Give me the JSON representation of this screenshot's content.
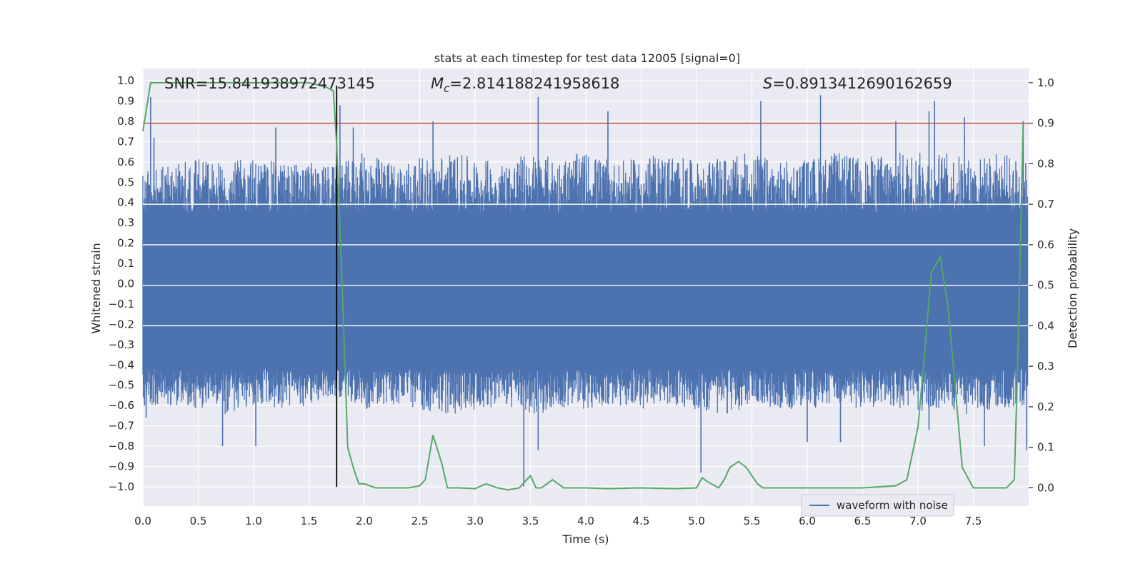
{
  "chart_data": {
    "type": "line",
    "title": "stats at each timestep for test data 12005 [signal=0]",
    "xlabel": "Time (s)",
    "ylabel": "Whitened strain",
    "y2label": "Detection probability",
    "xlim": [
      0.0,
      8.0
    ],
    "ylim": [
      -1.095,
      1.06
    ],
    "y2lim": [
      -0.045,
      1.035
    ],
    "xticks": [
      0.0,
      0.5,
      1.0,
      1.5,
      2.0,
      2.5,
      3.0,
      3.5,
      4.0,
      4.5,
      5.0,
      5.5,
      6.0,
      6.5,
      7.0,
      7.5
    ],
    "xtick_labels": [
      "0.0",
      "0.5",
      "1.0",
      "1.5",
      "2.0",
      "2.5",
      "3.0",
      "3.5",
      "4.0",
      "4.5",
      "5.0",
      "5.5",
      "6.0",
      "6.5",
      "7.0",
      "7.5"
    ],
    "yticks": [
      -1.0,
      -0.9,
      -0.8,
      -0.7,
      -0.6,
      -0.5,
      -0.4,
      -0.3,
      -0.2,
      -0.1,
      0.0,
      0.1,
      0.2,
      0.3,
      0.4,
      0.5,
      0.6,
      0.7,
      0.8,
      0.9,
      1.0
    ],
    "ytick_labels": [
      "−1.0",
      "−0.9",
      "−0.8",
      "−0.7",
      "−0.6",
      "−0.5",
      "−0.4",
      "−0.3",
      "−0.2",
      "−0.1",
      "0.0",
      "0.1",
      "0.2",
      "0.3",
      "0.4",
      "0.5",
      "0.6",
      "0.7",
      "0.8",
      "0.9",
      "1.0"
    ],
    "y2ticks": [
      0.0,
      0.1,
      0.2,
      0.3,
      0.4,
      0.5,
      0.6,
      0.7,
      0.8,
      0.9,
      1.0
    ],
    "y2tick_labels": [
      "0.0",
      "0.1",
      "0.2",
      "0.3",
      "0.4",
      "0.5",
      "0.6",
      "0.7",
      "0.8",
      "0.9",
      "1.0"
    ],
    "grid": true,
    "background": "#eaeaf2",
    "annotations": {
      "snr": "SNR=15.841938972473145",
      "mc_symbol": "M",
      "mc_sub": "c",
      "mc_value": "=2.814188241958618",
      "s_symbol": "S",
      "s_value": "=0.8913412690162659"
    },
    "threshold": {
      "value": 0.9,
      "axis": "right",
      "color": "#c44e52"
    },
    "vline": {
      "x": 1.75,
      "color": "#000000"
    },
    "legend": {
      "position": "lower-right",
      "entries": [
        "waveform with noise"
      ]
    },
    "series": [
      {
        "name": "waveform with noise",
        "axis": "left",
        "color": "#4c72b0",
        "description_envelope": {
          "x": [
            0.0,
            0.25,
            0.5,
            0.75,
            1.0,
            1.25,
            1.5,
            1.75,
            2.0,
            2.25,
            2.5,
            2.75,
            3.0,
            3.25,
            3.5,
            3.75,
            4.0,
            4.25,
            4.5,
            4.75,
            5.0,
            5.25,
            5.5,
            5.75,
            6.0,
            6.25,
            6.5,
            6.75,
            7.0,
            7.25,
            7.5,
            7.75,
            7.99
          ],
          "upper": [
            0.55,
            0.6,
            0.62,
            0.6,
            0.62,
            0.6,
            0.6,
            0.58,
            0.65,
            0.6,
            0.62,
            0.65,
            0.62,
            0.6,
            0.65,
            0.62,
            0.65,
            0.6,
            0.62,
            0.65,
            0.6,
            0.62,
            0.65,
            0.6,
            0.62,
            0.65,
            0.62,
            0.65,
            0.65,
            0.65,
            0.62,
            0.65,
            0.6
          ],
          "lower": [
            -0.6,
            -0.6,
            -0.62,
            -0.65,
            -0.6,
            -0.62,
            -0.6,
            -0.55,
            -0.62,
            -0.6,
            -0.62,
            -0.65,
            -0.62,
            -0.6,
            -0.65,
            -0.62,
            -0.62,
            -0.6,
            -0.62,
            -0.6,
            -0.62,
            -0.65,
            -0.6,
            -0.62,
            -0.62,
            -0.6,
            -0.62,
            -0.6,
            -0.65,
            -0.62,
            -0.65,
            -0.62,
            -0.6
          ],
          "spikes_up": [
            [
              0.07,
              0.92
            ],
            [
              0.1,
              0.72
            ],
            [
              1.2,
              0.77
            ],
            [
              1.78,
              0.88
            ],
            [
              1.9,
              0.77
            ],
            [
              2.62,
              0.8
            ],
            [
              3.57,
              0.92
            ],
            [
              4.2,
              0.85
            ],
            [
              5.58,
              0.9
            ],
            [
              6.12,
              0.93
            ],
            [
              6.8,
              0.8
            ],
            [
              7.1,
              0.85
            ],
            [
              7.15,
              0.9
            ],
            [
              7.42,
              0.82
            ],
            [
              7.95,
              0.8
            ]
          ],
          "spikes_down": [
            [
              0.03,
              -0.66
            ],
            [
              0.72,
              -0.8
            ],
            [
              1.02,
              -0.8
            ],
            [
              3.44,
              -1.0
            ],
            [
              3.57,
              -0.82
            ],
            [
              5.04,
              -0.93
            ],
            [
              6.0,
              -0.78
            ],
            [
              6.3,
              -0.78
            ],
            [
              7.1,
              -0.72
            ],
            [
              7.6,
              -0.8
            ],
            [
              7.98,
              -0.82
            ]
          ]
        }
      },
      {
        "name": "",
        "axis": "right",
        "color": "#55a868",
        "x": [
          0.0,
          0.07,
          0.5,
          1.0,
          1.5,
          1.65,
          1.72,
          1.75,
          1.8,
          1.85,
          1.9,
          1.95,
          2.0,
          2.1,
          2.2,
          2.3,
          2.4,
          2.5,
          2.55,
          2.62,
          2.7,
          2.75,
          2.85,
          3.0,
          3.1,
          3.2,
          3.3,
          3.4,
          3.5,
          3.55,
          3.6,
          3.7,
          3.8,
          3.9,
          4.0,
          4.2,
          4.5,
          4.8,
          5.0,
          5.05,
          5.1,
          5.2,
          5.25,
          5.3,
          5.38,
          5.45,
          5.55,
          5.6,
          5.7,
          6.0,
          6.5,
          6.8,
          6.9,
          7.0,
          7.05,
          7.12,
          7.2,
          7.27,
          7.32,
          7.4,
          7.5,
          7.6,
          7.8,
          7.87,
          7.9,
          7.95
        ],
        "values": [
          0.88,
          1.0,
          1.0,
          1.0,
          1.0,
          0.99,
          0.98,
          0.85,
          0.5,
          0.1,
          0.05,
          0.01,
          0.01,
          0.0,
          0.0,
          0.0,
          0.0,
          0.005,
          0.02,
          0.13,
          0.06,
          0.0,
          0.0,
          -0.002,
          0.01,
          0.0,
          -0.005,
          0.0,
          0.03,
          0.0,
          0.0,
          0.02,
          0.0,
          0.0,
          0.0,
          -0.002,
          0.0,
          -0.002,
          0.0,
          0.025,
          0.015,
          0.0,
          0.02,
          0.05,
          0.065,
          0.05,
          0.01,
          0.0,
          0.0,
          0.0,
          0.0,
          0.005,
          0.02,
          0.15,
          0.3,
          0.53,
          0.57,
          0.45,
          0.3,
          0.05,
          0.0,
          0.0,
          0.0,
          0.02,
          0.3,
          0.9
        ]
      }
    ]
  }
}
